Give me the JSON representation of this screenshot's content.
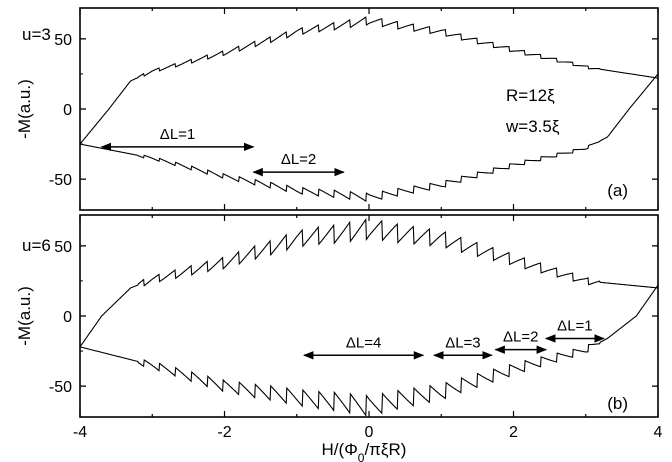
{
  "chart_data": [
    {
      "type": "line",
      "panel_label": "(a)",
      "param_label": "u=3",
      "extra_labels": [
        "R=12ξ",
        "w=3.5ξ"
      ],
      "xlim": [
        -4,
        4
      ],
      "ylim": [
        -72,
        72
      ],
      "yticks": [
        -50,
        0,
        50
      ],
      "ylabel": "-M(a.u.)",
      "annotations": [
        {
          "text": "ΔL=1",
          "x1": -3.7,
          "x2": -1.6,
          "y": -27
        },
        {
          "text": "ΔL=2",
          "x1": -1.6,
          "x2": -0.35,
          "y": -45
        }
      ],
      "series": [
        {
          "points": [
            [
              -4,
              -25
            ],
            [
              -3.6,
              0
            ],
            [
              -3.3,
              20
            ],
            [
              -3,
              27
            ],
            [
              -2,
              40
            ],
            [
              -1,
              55
            ],
            [
              0,
              63
            ],
            [
              1,
              55
            ],
            [
              2,
              42
            ],
            [
              3,
              30
            ],
            [
              4,
              22
            ]
          ]
        },
        {
          "points": [
            [
              -4,
              -25
            ],
            [
              -3,
              -35
            ],
            [
              -2,
              -48
            ],
            [
              -1,
              -58
            ],
            [
              0,
              -63
            ],
            [
              1,
              -54
            ],
            [
              2,
              -40
            ],
            [
              3,
              -28
            ],
            [
              3.3,
              -20
            ],
            [
              3.6,
              0
            ],
            [
              4,
              25
            ]
          ]
        }
      ]
    },
    {
      "type": "line",
      "panel_label": "(b)",
      "param_label": "u=6",
      "xlim": [
        -4,
        4
      ],
      "ylim": [
        -72,
        72
      ],
      "yticks": [
        -50,
        0,
        50
      ],
      "ylabel": "-M(a.u.)",
      "annotations": [
        {
          "text": "ΔL=4",
          "x1": -0.9,
          "x2": 0.75,
          "y": -28
        },
        {
          "text": "ΔL=3",
          "x1": 0.9,
          "x2": 1.7,
          "y": -28
        },
        {
          "text": "ΔL=2",
          "x1": 1.75,
          "x2": 2.45,
          "y": -24
        },
        {
          "text": "ΔL=1",
          "x1": 2.45,
          "x2": 3.25,
          "y": -16
        }
      ],
      "series": [
        {
          "points": [
            [
              -4,
              -22
            ],
            [
              -3.7,
              0
            ],
            [
              -3.3,
              20
            ],
            [
              -3,
              26
            ],
            [
              -2,
              38
            ],
            [
              -1,
              55
            ],
            [
              0,
              62
            ],
            [
              1,
              55
            ],
            [
              2,
              40
            ],
            [
              3,
              25
            ],
            [
              4,
              20
            ]
          ]
        },
        {
          "points": [
            [
              -4,
              -22
            ],
            [
              -3,
              -35
            ],
            [
              -2,
              -50
            ],
            [
              -1,
              -58
            ],
            [
              0,
              -64
            ],
            [
              1,
              -54
            ],
            [
              2,
              -38
            ],
            [
              3,
              -24
            ],
            [
              3.3,
              -16
            ],
            [
              3.7,
              0
            ],
            [
              4,
              22
            ]
          ]
        }
      ]
    }
  ],
  "xaxis": {
    "ticks": [
      -4,
      -2,
      0,
      2,
      4
    ],
    "label_base": "H/(Φ",
    "label_sub": "0",
    "label_rest": "/πξR)"
  }
}
